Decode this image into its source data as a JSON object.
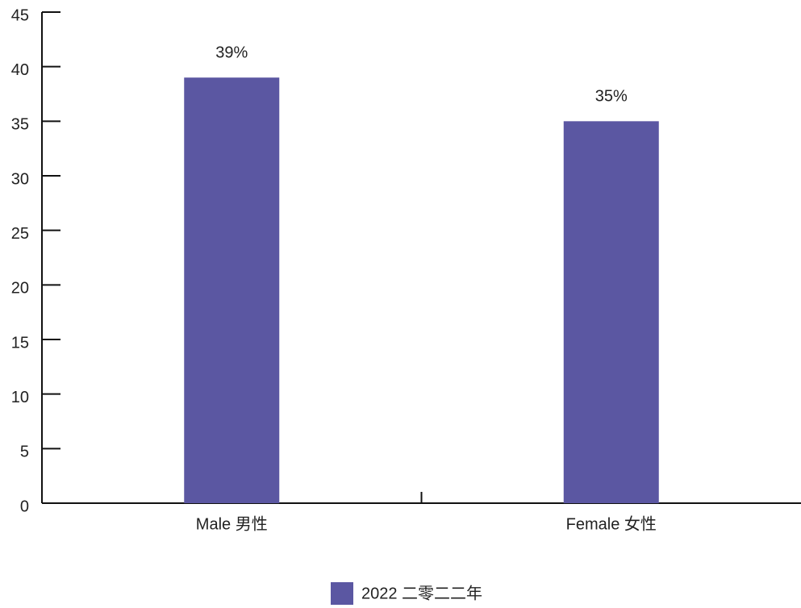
{
  "chart_data": {
    "type": "bar",
    "categories": [
      "Male 男性",
      "Female 女性"
    ],
    "series": [
      {
        "name": "2022 二零二二年",
        "color": "#5b57a2",
        "values": [
          39,
          35
        ],
        "value_labels": [
          "39%",
          "35%"
        ]
      }
    ],
    "ylim": [
      0,
      45
    ],
    "yticks": [
      0,
      5,
      10,
      15,
      20,
      25,
      30,
      35,
      40,
      45
    ],
    "legend": "bottom"
  }
}
